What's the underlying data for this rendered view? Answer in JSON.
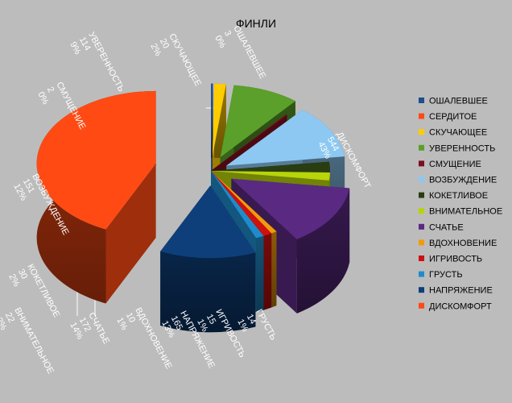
{
  "chart_data": {
    "type": "pie",
    "title": "ФИНЛИ",
    "legend_placement": "right",
    "slices": [
      {
        "name": "ОШАЛЕВШЕЕ",
        "value": 3,
        "percent": "0%",
        "color": "#1f4e8c"
      },
      {
        "name": "СЕРДИТОЕ",
        "value": 0,
        "percent": "0%",
        "color": "#ff4a14"
      },
      {
        "name": "СКУЧАЮЩЕЕ",
        "value": 20,
        "percent": "2%",
        "color": "#ffcc00"
      },
      {
        "name": "УВЕРЕННОСТЬ",
        "value": 114,
        "percent": "9%",
        "color": "#5ba02a"
      },
      {
        "name": "СМУЩЕНИЕ",
        "value": 2,
        "percent": "0%",
        "color": "#7a0f1e"
      },
      {
        "name": "ВОЗБУЖДЕНИЕ",
        "value": 151,
        "percent": "12%",
        "color": "#8cc8f2"
      },
      {
        "name": "КОКЕТЛИВОЕ",
        "value": 30,
        "percent": "2%",
        "color": "#2a3d12"
      },
      {
        "name": "ВНИМАТЕЛЬНОЕ",
        "value": 22,
        "percent": "2%",
        "color": "#b8d40a"
      },
      {
        "name": "СЧАТЬЕ",
        "value": 172,
        "percent": "14%",
        "color": "#5a2a82"
      },
      {
        "name": "ВДОХНОВЕНИЕ",
        "value": 10,
        "percent": "1%",
        "color": "#f29a0c"
      },
      {
        "name": "ИГРИВОСТЬ",
        "value": 15,
        "percent": "1%",
        "color": "#cc1111"
      },
      {
        "name": "ГРУСТЬ",
        "value": 14,
        "percent": "1%",
        "color": "#1e8ccc"
      },
      {
        "name": "НАПРЯЖЕНИЕ",
        "value": 165,
        "percent": "13%",
        "color": "#0e3f7a"
      },
      {
        "name": "ДИСКОМФОРТ",
        "value": 544,
        "percent": "43%",
        "color": "#ff4a14"
      }
    ]
  }
}
